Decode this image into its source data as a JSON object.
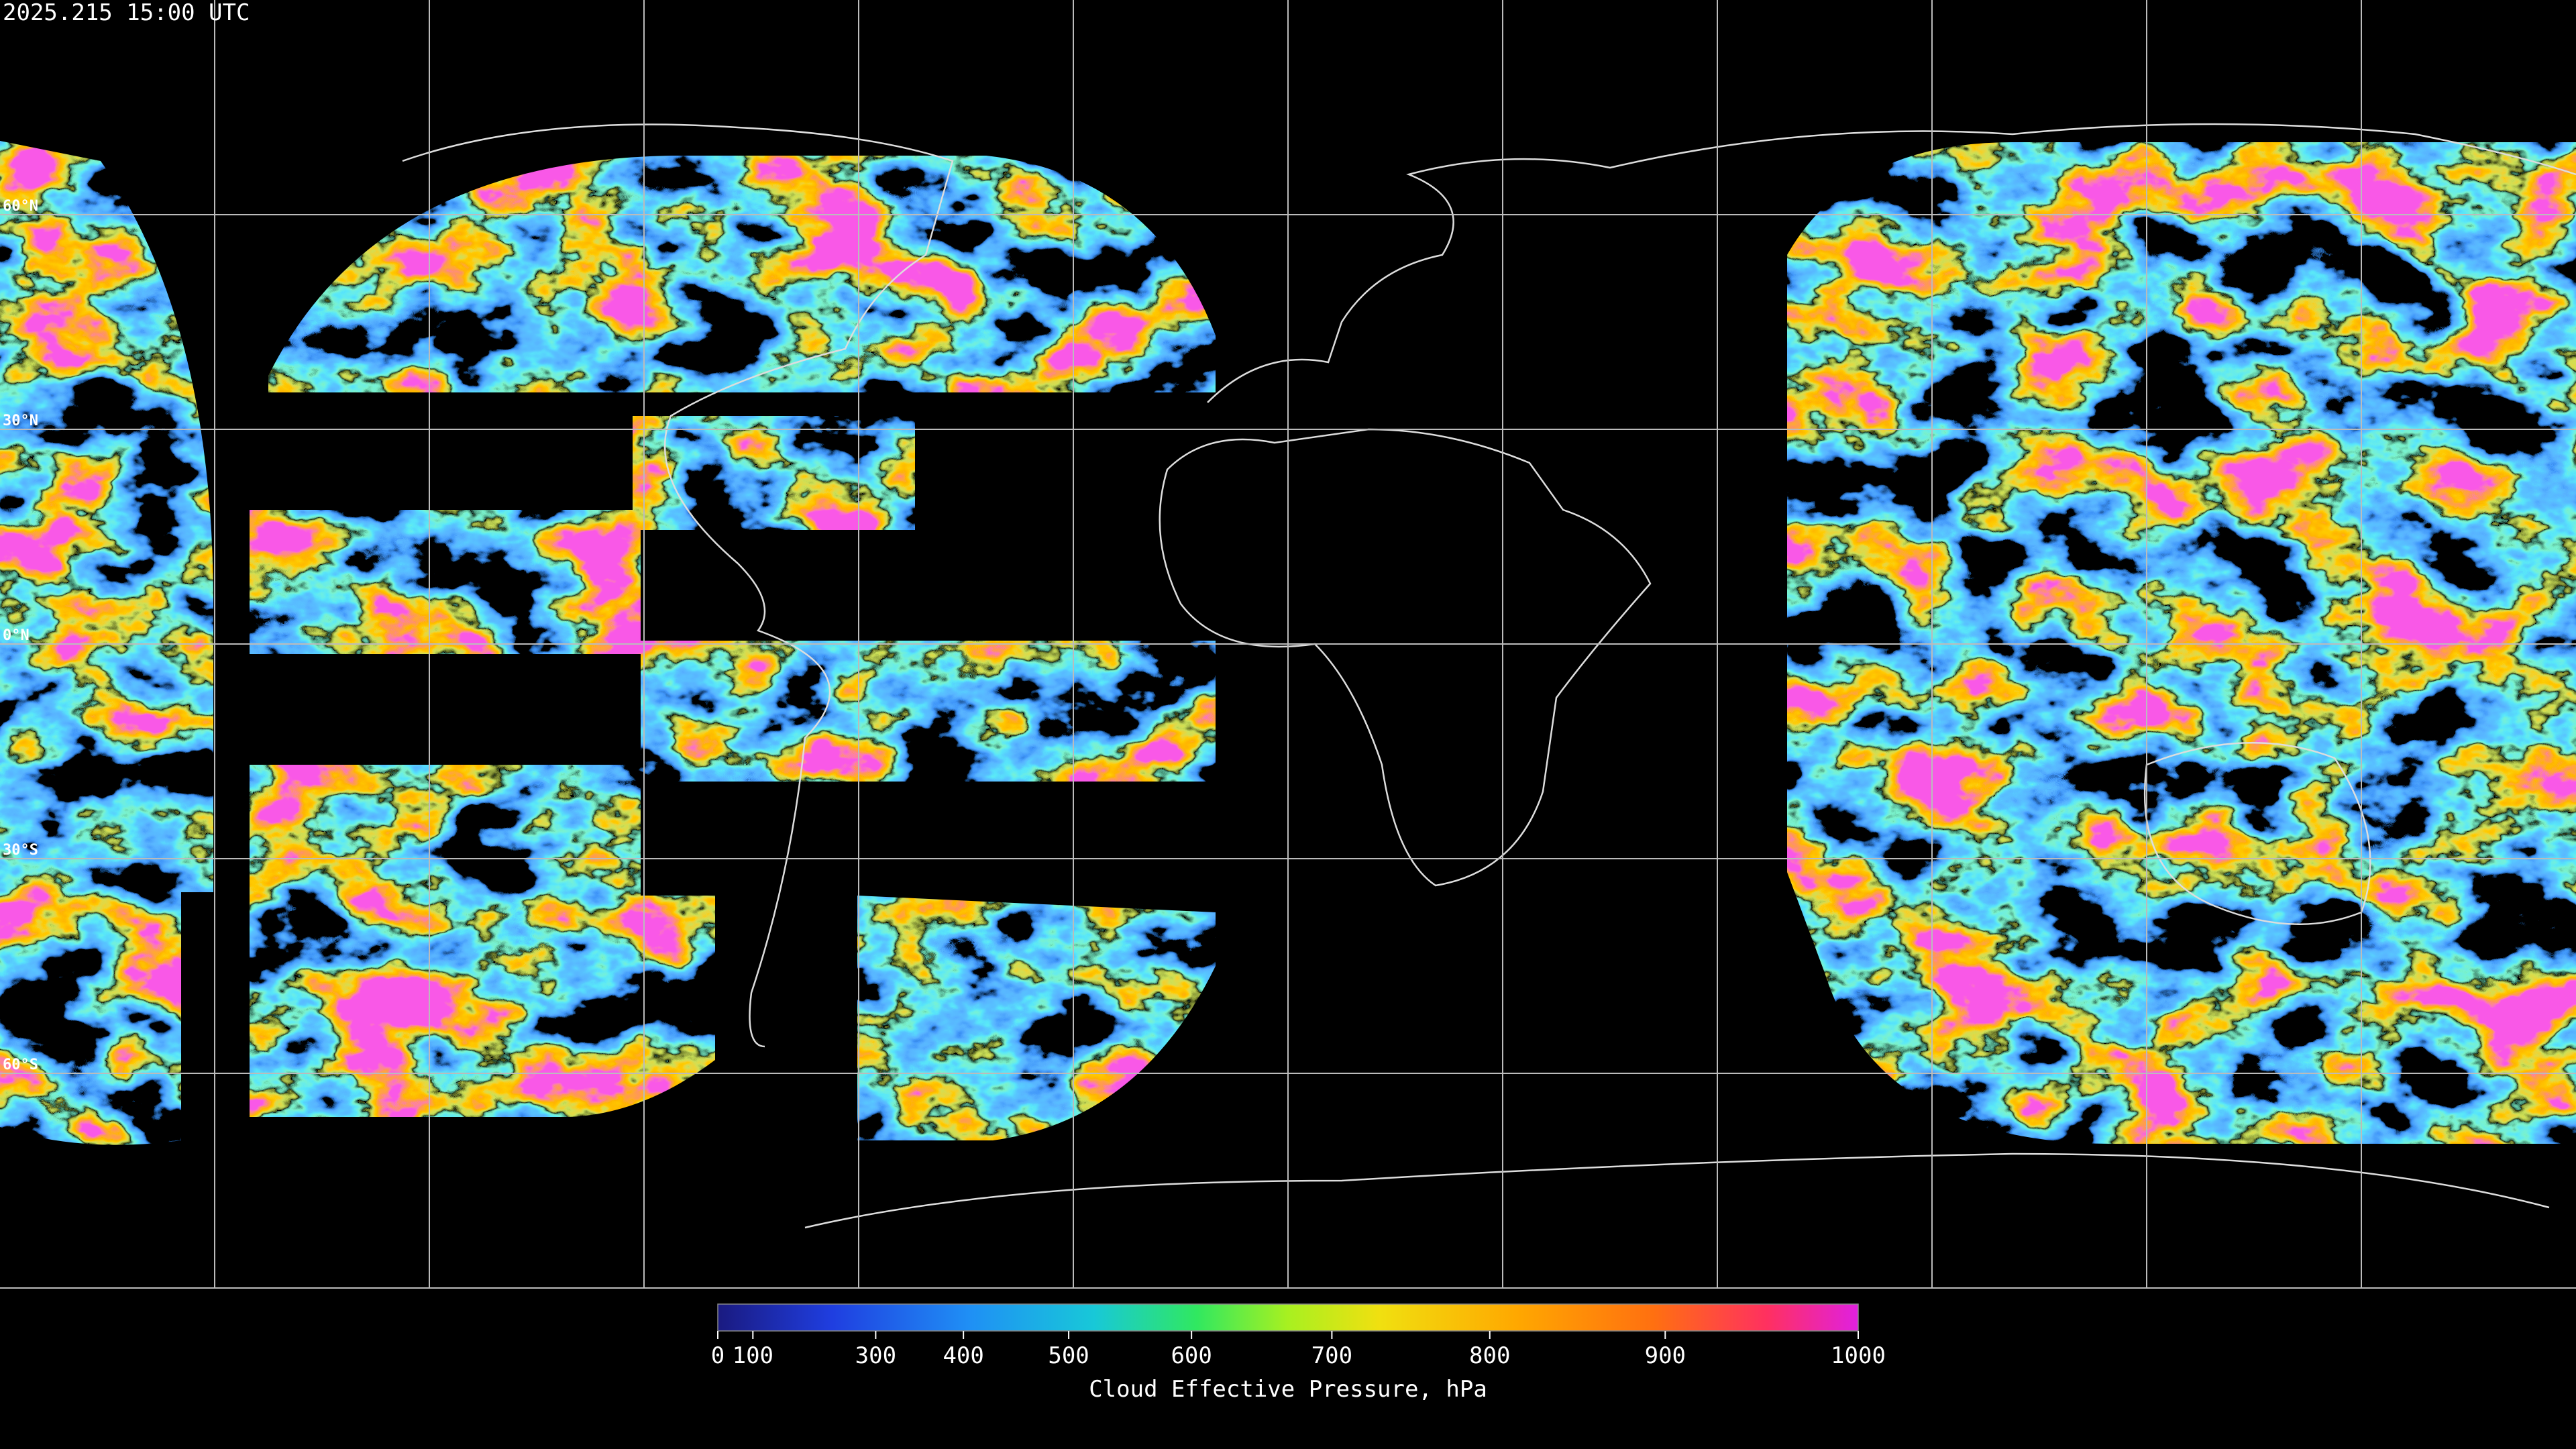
{
  "header": {
    "timestamp": "2025.215 15:00 UTC"
  },
  "map": {
    "latitude_labels": [
      {
        "value": 60,
        "label": "60°N"
      },
      {
        "value": 30,
        "label": "30°N"
      },
      {
        "value": 0,
        "label": "0°N"
      },
      {
        "value": -30,
        "label": "30°S"
      },
      {
        "value": -60,
        "label": "60°S"
      }
    ]
  },
  "colorbar": {
    "label": "Cloud Effective Pressure, hPa",
    "lim": [
      0,
      1000
    ],
    "ticks": [
      0,
      100,
      300,
      400,
      500,
      600,
      700,
      800,
      900,
      1000
    ]
  }
}
